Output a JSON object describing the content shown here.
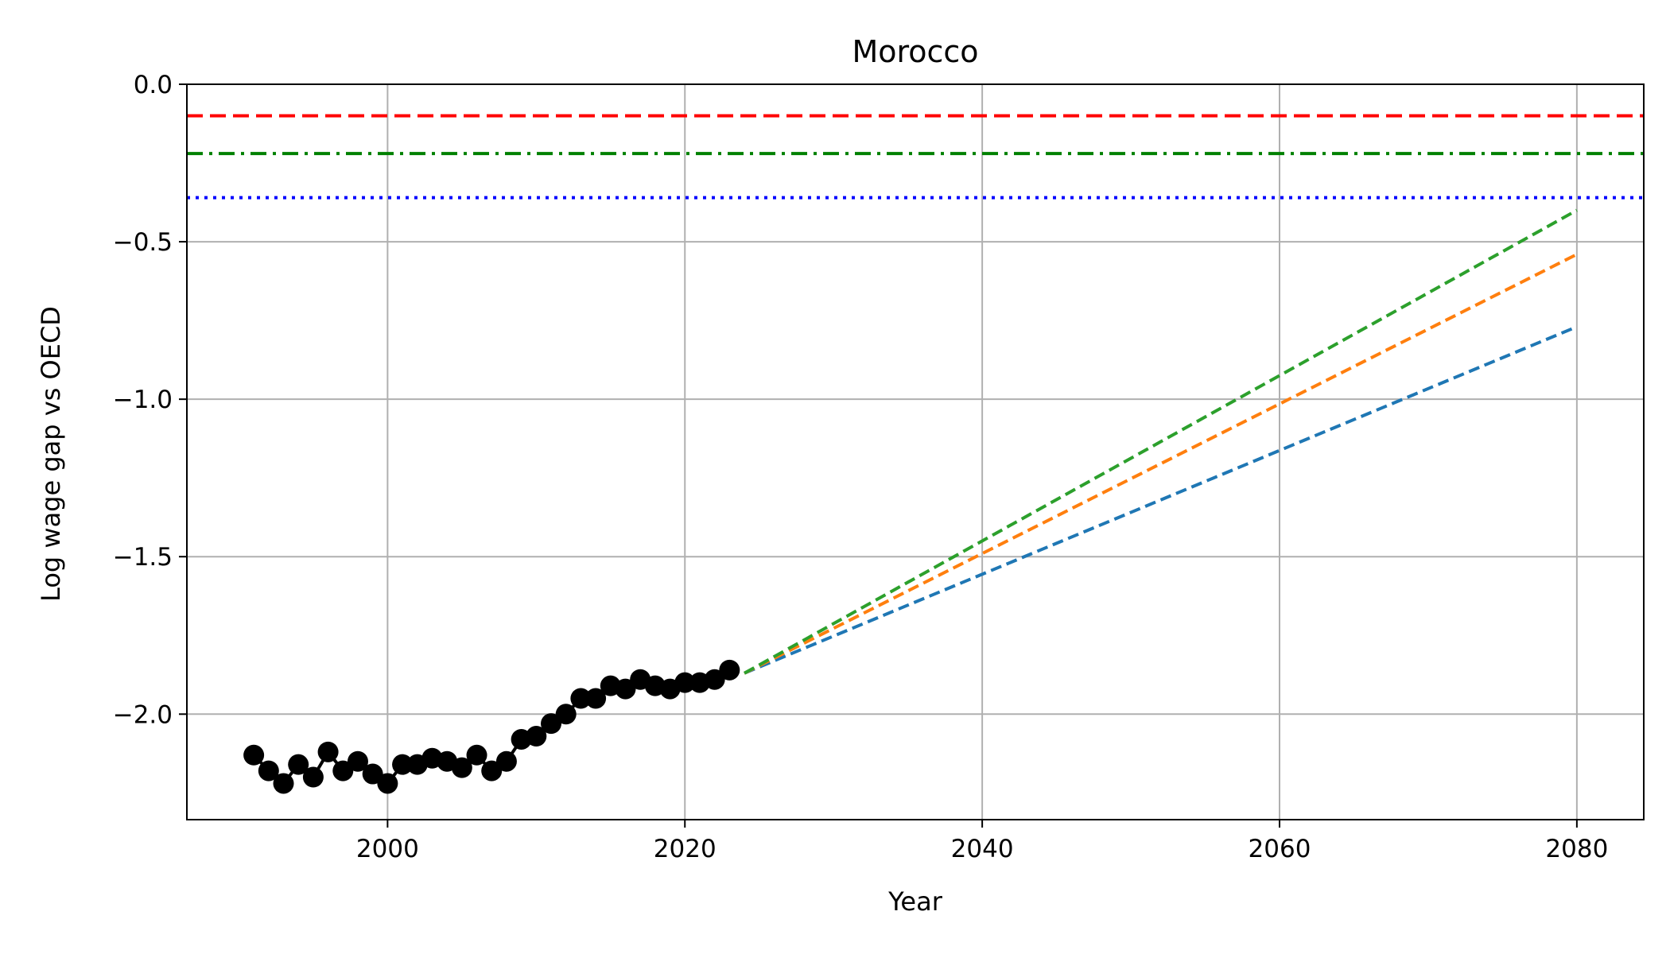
{
  "chart_data": {
    "type": "line",
    "title": "Morocco",
    "xlabel": "Year",
    "ylabel": "Log wage gap vs OECD",
    "xlim": [
      1986.5,
      2084.5
    ],
    "ylim": [
      -2.335,
      0.0
    ],
    "x_ticks": [
      2000,
      2020,
      2040,
      2060,
      2080
    ],
    "y_ticks": [
      0.0,
      -0.5,
      -1.0,
      -1.5,
      -2.0
    ],
    "x_tick_labels": [
      "2000",
      "2020",
      "2040",
      "2060",
      "2080"
    ],
    "y_tick_labels": [
      "0.0",
      "−0.5",
      "−1.0",
      "−1.5",
      "−2.0"
    ],
    "grid": true,
    "historical": {
      "color": "#000000",
      "x": [
        1991,
        1992,
        1993,
        1994,
        1995,
        1996,
        1997,
        1998,
        1999,
        2000,
        2001,
        2002,
        2003,
        2004,
        2005,
        2006,
        2007,
        2008,
        2009,
        2010,
        2011,
        2012,
        2013,
        2014,
        2015,
        2016,
        2017,
        2018,
        2019,
        2020,
        2021,
        2022,
        2023
      ],
      "y": [
        -2.13,
        -2.18,
        -2.22,
        -2.16,
        -2.2,
        -2.12,
        -2.18,
        -2.15,
        -2.19,
        -2.22,
        -2.16,
        -2.16,
        -2.14,
        -2.15,
        -2.17,
        -2.13,
        -2.18,
        -2.15,
        -2.08,
        -2.07,
        -2.03,
        -2.0,
        -1.95,
        -1.95,
        -1.91,
        -1.92,
        -1.89,
        -1.91,
        -1.92,
        -1.9,
        -1.9,
        -1.89,
        -1.86
      ]
    },
    "projections": [
      {
        "color": "#1f77b4",
        "x": [
          2024,
          2080
        ],
        "y": [
          -1.87,
          -0.77
        ]
      },
      {
        "color": "#ff7f0e",
        "x": [
          2024,
          2080
        ],
        "y": [
          -1.87,
          -0.54
        ]
      },
      {
        "color": "#2ca02c",
        "x": [
          2024,
          2080
        ],
        "y": [
          -1.87,
          -0.4
        ]
      }
    ],
    "reference_lines": [
      {
        "color": "#ff0000",
        "style": "dashed",
        "y": -0.1
      },
      {
        "color": "#008000",
        "style": "dashdot",
        "y": -0.22
      },
      {
        "color": "#0000ff",
        "style": "dotted",
        "y": -0.36
      }
    ]
  }
}
